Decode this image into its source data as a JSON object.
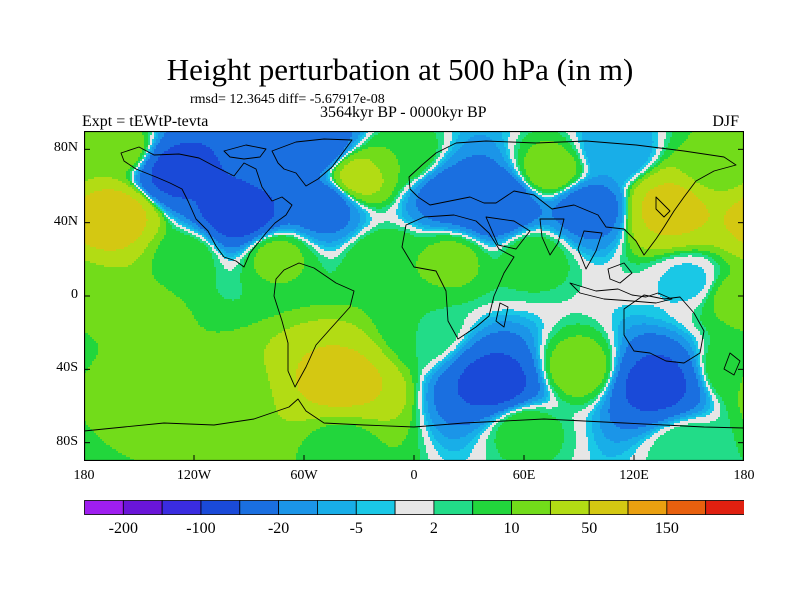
{
  "title": "Height perturbation at 500 hPa (in m)",
  "rmsd_text": "rmsd= 12.3645 diff= -5.67917e-08",
  "period": "3564kyr BP - 0000kyr BP",
  "experiment": "Expt = tEWtP-tevta",
  "season": "DJF",
  "map": {
    "projection": "cylindrical-equidistant",
    "lon_range": [
      -180,
      180
    ],
    "lat_range": [
      -90,
      90
    ],
    "lat_ticks": [
      {
        "value": 80,
        "label": "80N"
      },
      {
        "value": 40,
        "label": "40N"
      },
      {
        "value": 0,
        "label": "0"
      },
      {
        "value": -40,
        "label": "40S"
      },
      {
        "value": -80,
        "label": "80S"
      }
    ],
    "lon_ticks": [
      {
        "value": -180,
        "label": "180"
      },
      {
        "value": -120,
        "label": "120W"
      },
      {
        "value": -60,
        "label": "60W"
      },
      {
        "value": 0,
        "label": "0"
      },
      {
        "value": 60,
        "label": "60E"
      },
      {
        "value": 120,
        "label": "120E"
      },
      {
        "value": 180,
        "label": "180"
      }
    ],
    "field_centers": [
      {
        "lon": -165,
        "lat": 43,
        "value": 70
      },
      {
        "lon": -160,
        "lat": 80,
        "value": 15
      },
      {
        "lon": -130,
        "lat": 68,
        "value": -60
      },
      {
        "lon": -95,
        "lat": 45,
        "value": -70
      },
      {
        "lon": -75,
        "lat": 72,
        "value": -40
      },
      {
        "lon": -55,
        "lat": 82,
        "value": -40
      },
      {
        "lon": -50,
        "lat": 50,
        "value": -30
      },
      {
        "lon": -30,
        "lat": 65,
        "value": 25
      },
      {
        "lon": -5,
        "lat": 75,
        "value": 10
      },
      {
        "lon": 20,
        "lat": 55,
        "value": -30
      },
      {
        "lon": 45,
        "lat": 50,
        "value": -50
      },
      {
        "lon": 75,
        "lat": 68,
        "value": 15
      },
      {
        "lon": 95,
        "lat": 48,
        "value": -30
      },
      {
        "lon": 140,
        "lat": 48,
        "value": 60
      },
      {
        "lon": 165,
        "lat": 72,
        "value": 10
      },
      {
        "lon": 110,
        "lat": 78,
        "value": -10
      },
      {
        "lon": -125,
        "lat": 22,
        "value": 8
      },
      {
        "lon": -75,
        "lat": 22,
        "value": 12
      },
      {
        "lon": -15,
        "lat": 20,
        "value": 10
      },
      {
        "lon": 20,
        "lat": 20,
        "value": 12
      },
      {
        "lon": 65,
        "lat": 22,
        "value": 8
      },
      {
        "lon": 150,
        "lat": 8,
        "value": -3
      },
      {
        "lon": 175,
        "lat": 0,
        "value": 12
      },
      {
        "lon": -150,
        "lat": -10,
        "value": 12
      },
      {
        "lon": -160,
        "lat": -55,
        "value": 15
      },
      {
        "lon": -105,
        "lat": -55,
        "value": 12
      },
      {
        "lon": -40,
        "lat": -47,
        "value": 60
      },
      {
        "lon": 5,
        "lat": -20,
        "value": 5
      },
      {
        "lon": 45,
        "lat": -48,
        "value": -60
      },
      {
        "lon": 90,
        "lat": -40,
        "value": 15
      },
      {
        "lon": 132,
        "lat": -48,
        "value": -60
      },
      {
        "lon": 175,
        "lat": -40,
        "value": 10
      },
      {
        "lon": -120,
        "lat": -80,
        "value": 10
      },
      {
        "lon": -40,
        "lat": -80,
        "value": 8
      },
      {
        "lon": 60,
        "lat": -72,
        "value": 8
      },
      {
        "lon": 150,
        "lat": -82,
        "value": 5
      }
    ]
  },
  "colorbar": {
    "levels": [
      -300,
      -200,
      -150,
      -100,
      -50,
      -20,
      -10,
      -5,
      -2,
      2,
      5,
      10,
      20,
      50,
      100,
      150,
      200
    ],
    "labels": [
      "-200",
      "-100",
      "-20",
      "-5",
      "2",
      "10",
      "50",
      "150"
    ],
    "colors": [
      "#9f1ef0",
      "#6a15d8",
      "#3a2ce0",
      "#1a4ad8",
      "#1a6fe0",
      "#1b95e8",
      "#18aee8",
      "#1ac8e6",
      "#e6e6e6",
      "#22dc88",
      "#22d63c",
      "#72dc1a",
      "#b2dc14",
      "#d4c812",
      "#eaa010",
      "#e8600e",
      "#e02010"
    ]
  }
}
